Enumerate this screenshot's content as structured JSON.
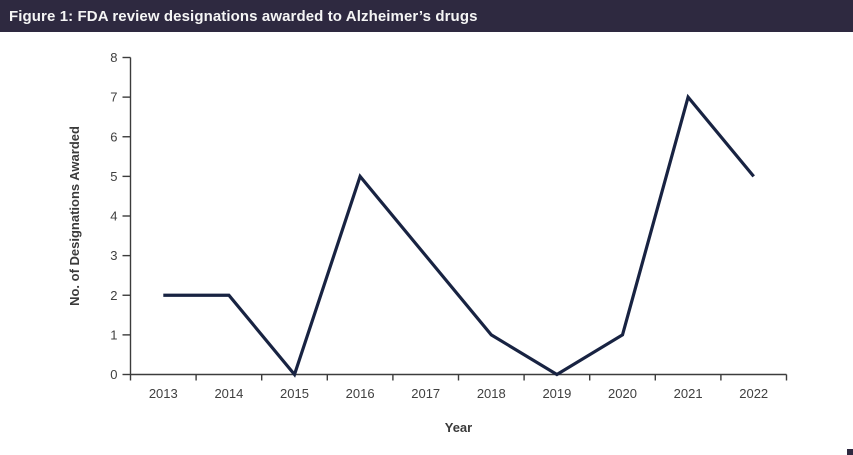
{
  "header": {
    "title": "Figure 1: FDA review designations awarded to Alzheimer’s drugs",
    "bg_color": "#2e2940",
    "text_color": "#f5f5f5"
  },
  "chart_data": {
    "type": "line",
    "title": "Figure 1: FDA review designations awarded to Alzheimer’s drugs",
    "categories": [
      "2013",
      "2014",
      "2015",
      "2016",
      "2017",
      "2018",
      "2019",
      "2020",
      "2021",
      "2022"
    ],
    "values": [
      2,
      2,
      0,
      5,
      3,
      1,
      0,
      1,
      7,
      5
    ],
    "xlabel": "Year",
    "ylabel": "No. of Designations Awarded",
    "ylim": [
      0,
      8
    ],
    "ytick_step": 1,
    "grid": false,
    "legend": "none",
    "line_color": "#182342",
    "axis_color": "#3c3c3c",
    "tick_label_color": "#404040",
    "axis_title_color": "#3a3a3a"
  },
  "decorations": {
    "next_figure_fragment_color": "#2e2940"
  }
}
